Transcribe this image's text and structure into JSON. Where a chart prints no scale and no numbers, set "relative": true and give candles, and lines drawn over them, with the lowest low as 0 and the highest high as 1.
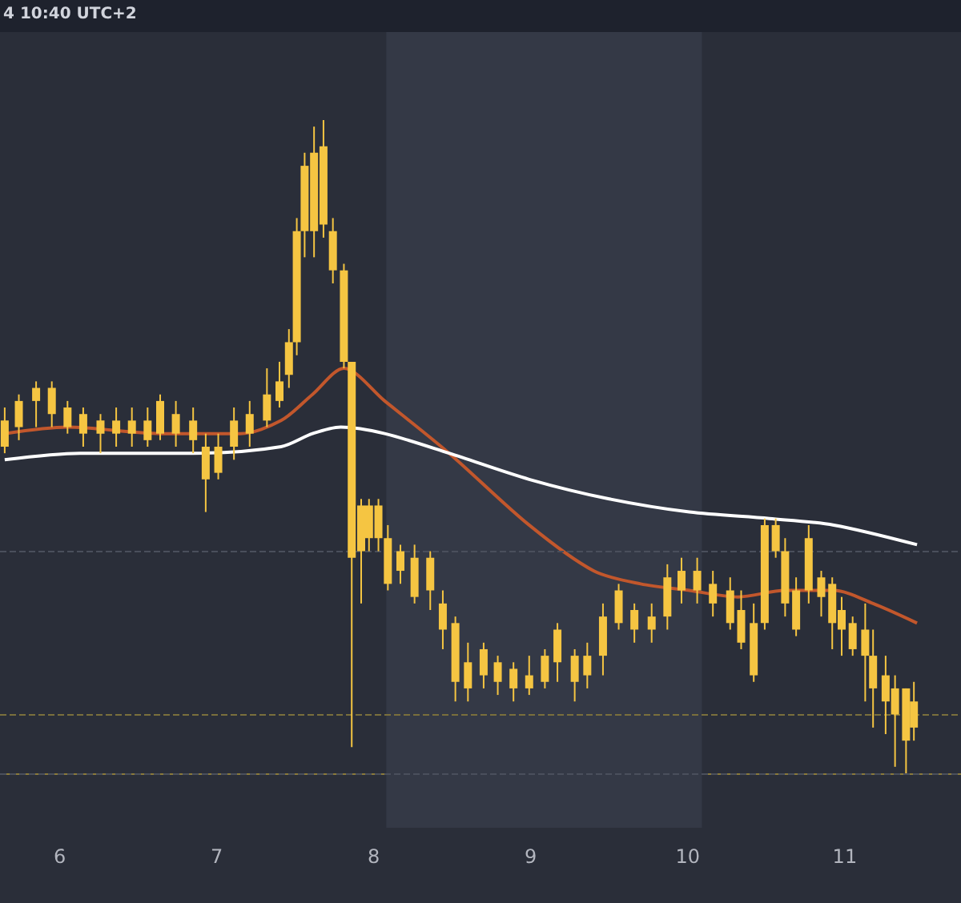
{
  "chart_data": {
    "type": "candlestick",
    "relative": true,
    "annotations": [
      "4 10:40 UTC+2"
    ],
    "xlim": [
      5.62,
      11.74
    ],
    "xticks": [
      6,
      7,
      8,
      9,
      10,
      11
    ],
    "tick_labels": "x",
    "grid": false,
    "bands": [
      {
        "axis": "x",
        "from": 8.08,
        "to": 10.09,
        "color": "#343946"
      }
    ],
    "ref_lines": [
      {
        "axis": "y",
        "value": 0.34,
        "color": "#4a4f5c",
        "line_style": "dashed"
      },
      {
        "axis": "y",
        "value": 0.09,
        "color": "#7a6f3c",
        "line_style": "dashed"
      },
      {
        "axis": "y",
        "value": 0.0,
        "color": "#4a4f5c",
        "line_style": "dashed"
      }
    ],
    "series": [
      {
        "color": "#f5c542",
        "x": [
          5.65,
          5.74,
          5.85,
          5.95,
          6.05,
          6.15,
          6.26,
          6.36,
          6.46,
          6.56,
          6.64,
          6.74,
          6.85,
          6.93,
          7.01,
          7.11,
          7.21,
          7.32,
          7.4,
          7.46,
          7.51,
          7.56,
          7.62,
          7.68,
          7.74,
          7.81,
          7.86,
          7.92,
          7.97,
          8.03,
          8.09,
          8.17,
          8.26,
          8.36,
          8.44,
          8.52,
          8.6,
          8.7,
          8.79,
          8.89,
          8.99,
          9.09,
          9.17,
          9.28,
          9.36,
          9.46,
          9.56,
          9.66,
          9.77,
          9.87,
          9.96,
          10.06,
          10.16,
          10.27,
          10.34,
          10.42,
          10.49,
          10.56,
          10.62,
          10.69,
          10.77,
          10.85,
          10.92,
          10.98,
          11.05,
          11.13,
          11.18,
          11.26,
          11.32,
          11.39,
          11.44
        ],
        "ohlc": [
          [
            0.5,
            0.56,
            0.49,
            0.54
          ],
          [
            0.53,
            0.58,
            0.51,
            0.57
          ],
          [
            0.57,
            0.6,
            0.53,
            0.59
          ],
          [
            0.55,
            0.6,
            0.53,
            0.59
          ],
          [
            0.53,
            0.57,
            0.52,
            0.56
          ],
          [
            0.52,
            0.56,
            0.5,
            0.55
          ],
          [
            0.52,
            0.55,
            0.49,
            0.54
          ],
          [
            0.52,
            0.56,
            0.5,
            0.54
          ],
          [
            0.52,
            0.56,
            0.5,
            0.54
          ],
          [
            0.51,
            0.56,
            0.5,
            0.54
          ],
          [
            0.52,
            0.58,
            0.51,
            0.57
          ],
          [
            0.52,
            0.57,
            0.5,
            0.55
          ],
          [
            0.51,
            0.56,
            0.49,
            0.54
          ],
          [
            0.45,
            0.52,
            0.4,
            0.5
          ],
          [
            0.46,
            0.52,
            0.45,
            0.5
          ],
          [
            0.5,
            0.56,
            0.48,
            0.54
          ],
          [
            0.52,
            0.57,
            0.5,
            0.55
          ],
          [
            0.54,
            0.62,
            0.53,
            0.58
          ],
          [
            0.57,
            0.63,
            0.56,
            0.6
          ],
          [
            0.61,
            0.68,
            0.59,
            0.66
          ],
          [
            0.66,
            0.85,
            0.64,
            0.83
          ],
          [
            0.83,
            0.95,
            0.79,
            0.93
          ],
          [
            0.83,
            0.99,
            0.79,
            0.95
          ],
          [
            0.84,
            1.0,
            0.82,
            0.96
          ],
          [
            0.77,
            0.85,
            0.75,
            0.83
          ],
          [
            0.63,
            0.78,
            0.62,
            0.77
          ],
          [
            0.33,
            0.63,
            0.04,
            0.63
          ],
          [
            0.34,
            0.42,
            0.26,
            0.41
          ],
          [
            0.36,
            0.42,
            0.34,
            0.41
          ],
          [
            0.36,
            0.42,
            0.34,
            0.41
          ],
          [
            0.29,
            0.38,
            0.28,
            0.36
          ],
          [
            0.31,
            0.35,
            0.29,
            0.34
          ],
          [
            0.27,
            0.35,
            0.26,
            0.33
          ],
          [
            0.28,
            0.34,
            0.25,
            0.33
          ],
          [
            0.22,
            0.28,
            0.19,
            0.26
          ],
          [
            0.14,
            0.24,
            0.11,
            0.23
          ],
          [
            0.13,
            0.2,
            0.11,
            0.17
          ],
          [
            0.15,
            0.2,
            0.13,
            0.19
          ],
          [
            0.14,
            0.18,
            0.12,
            0.17
          ],
          [
            0.13,
            0.17,
            0.11,
            0.16
          ],
          [
            0.13,
            0.18,
            0.12,
            0.15
          ],
          [
            0.14,
            0.19,
            0.13,
            0.18
          ],
          [
            0.17,
            0.23,
            0.14,
            0.22
          ],
          [
            0.14,
            0.19,
            0.11,
            0.18
          ],
          [
            0.15,
            0.2,
            0.13,
            0.18
          ],
          [
            0.18,
            0.26,
            0.15,
            0.24
          ],
          [
            0.23,
            0.29,
            0.22,
            0.28
          ],
          [
            0.22,
            0.26,
            0.2,
            0.25
          ],
          [
            0.22,
            0.26,
            0.2,
            0.24
          ],
          [
            0.24,
            0.32,
            0.22,
            0.3
          ],
          [
            0.28,
            0.33,
            0.26,
            0.31
          ],
          [
            0.28,
            0.33,
            0.26,
            0.31
          ],
          [
            0.26,
            0.31,
            0.24,
            0.29
          ],
          [
            0.23,
            0.3,
            0.22,
            0.28
          ],
          [
            0.2,
            0.28,
            0.19,
            0.25
          ],
          [
            0.15,
            0.26,
            0.14,
            0.23
          ],
          [
            0.23,
            0.39,
            0.22,
            0.38
          ],
          [
            0.34,
            0.39,
            0.33,
            0.38
          ],
          [
            0.26,
            0.36,
            0.24,
            0.34
          ],
          [
            0.22,
            0.3,
            0.21,
            0.28
          ],
          [
            0.28,
            0.38,
            0.26,
            0.36
          ],
          [
            0.27,
            0.31,
            0.24,
            0.3
          ],
          [
            0.23,
            0.3,
            0.19,
            0.29
          ],
          [
            0.22,
            0.27,
            0.18,
            0.25
          ],
          [
            0.19,
            0.24,
            0.18,
            0.23
          ],
          [
            0.18,
            0.26,
            0.11,
            0.22
          ],
          [
            0.13,
            0.22,
            0.07,
            0.18
          ],
          [
            0.11,
            0.18,
            0.06,
            0.15
          ],
          [
            0.09,
            0.15,
            0.01,
            0.13
          ],
          [
            0.05,
            0.13,
            0.0,
            0.13
          ],
          [
            0.07,
            0.14,
            0.05,
            0.11
          ]
        ]
      },
      {
        "type": "line",
        "color": "#c2572c",
        "x": [
          5.65,
          6.05,
          6.64,
          7.15,
          7.41,
          7.61,
          7.81,
          8.07,
          8.48,
          8.99,
          9.4,
          9.7,
          10.01,
          10.32,
          10.62,
          10.93,
          11.18,
          11.46
        ],
        "values": [
          0.52,
          0.53,
          0.52,
          0.52,
          0.54,
          0.58,
          0.62,
          0.57,
          0.49,
          0.38,
          0.31,
          0.29,
          0.28,
          0.27,
          0.28,
          0.28,
          0.26,
          0.23
        ]
      },
      {
        "type": "line",
        "color": "#ffffff",
        "x": [
          5.65,
          6.13,
          6.85,
          7.41,
          7.61,
          7.79,
          8.07,
          8.48,
          8.99,
          9.5,
          10.01,
          10.52,
          10.93,
          11.46
        ],
        "values": [
          0.48,
          0.49,
          0.49,
          0.5,
          0.52,
          0.53,
          0.52,
          0.49,
          0.45,
          0.42,
          0.4,
          0.39,
          0.38,
          0.35
        ]
      }
    ]
  }
}
